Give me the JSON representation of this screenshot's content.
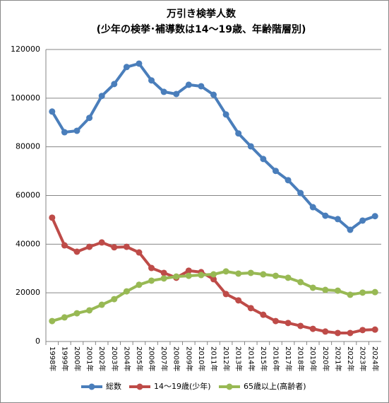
{
  "chart_data": {
    "type": "line",
    "title": "万引き検挙人数",
    "subtitle": "(少年の検挙･補導数は14～19歳、年齢階層別)",
    "categories": [
      "1998年",
      "1999年",
      "2000年",
      "2001年",
      "2002年",
      "2003年",
      "2004年",
      "2005年",
      "2006年",
      "2007年",
      "2008年",
      "2009年",
      "2010年",
      "2011年",
      "2012年",
      "2013年",
      "2014年",
      "2015年",
      "2016年",
      "2017年",
      "2018年",
      "2019年",
      "2020年",
      "2021年",
      "2022年",
      "2023年",
      "2024年"
    ],
    "series": [
      {
        "name": "総数",
        "color": "#4a7ebb",
        "values": [
          94500,
          86000,
          86600,
          91900,
          100900,
          105800,
          112800,
          114200,
          107300,
          102600,
          101700,
          105500,
          104900,
          101400,
          93300,
          85500,
          80200,
          75000,
          70100,
          66300,
          61000,
          55200,
          51700,
          50300,
          45900,
          49700,
          51500
        ]
      },
      {
        "name": "14～19歳(少年)",
        "color": "#be4b48",
        "values": [
          50900,
          39500,
          36900,
          38900,
          40700,
          38700,
          38900,
          36600,
          30200,
          28200,
          26200,
          29100,
          28500,
          25600,
          19500,
          16900,
          13700,
          11000,
          8400,
          7600,
          6400,
          5200,
          4100,
          3500,
          3500,
          4700,
          4900
        ]
      },
      {
        "name": "65歳以上(高齢者)",
        "color": "#98b954",
        "values": [
          8400,
          9900,
          11600,
          12800,
          15100,
          17400,
          20600,
          23300,
          25000,
          25900,
          26700,
          27000,
          27300,
          27600,
          28800,
          27900,
          28200,
          27600,
          27000,
          26200,
          24400,
          22100,
          21200,
          20900,
          19200,
          20100,
          20300
        ]
      }
    ],
    "ylim": [
      0,
      120000
    ],
    "yticks": [
      0,
      20000,
      40000,
      60000,
      80000,
      100000,
      120000
    ],
    "grid": true
  }
}
